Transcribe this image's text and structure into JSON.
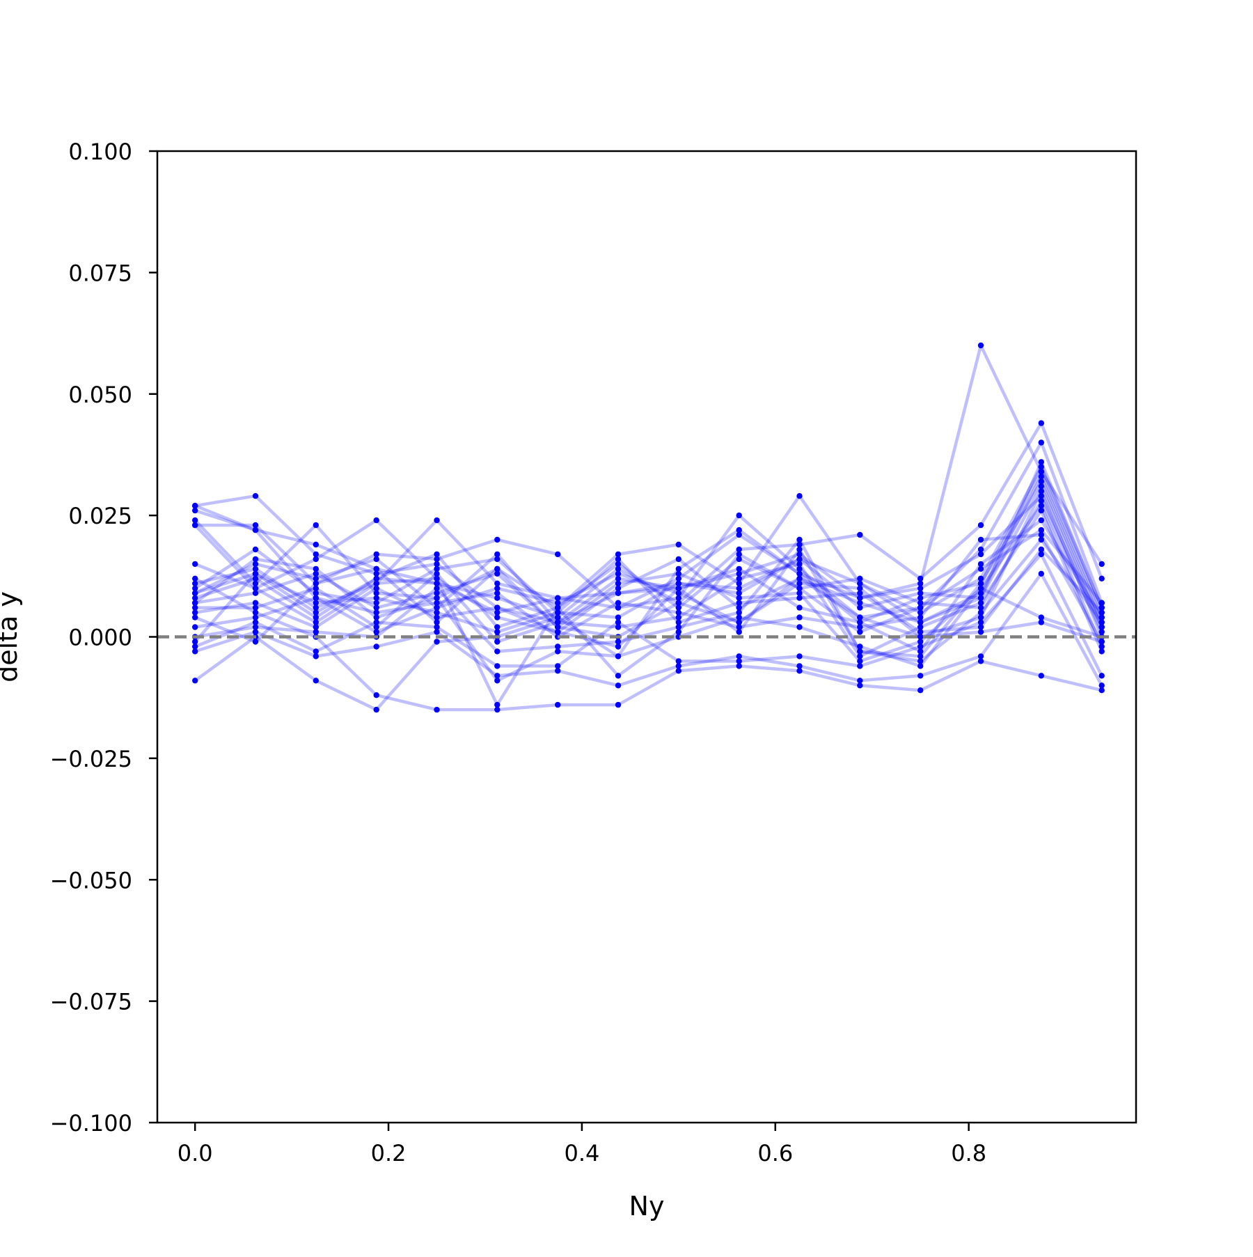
{
  "chart_data": {
    "type": "line",
    "title": "",
    "xlabel": "Ny",
    "ylabel": "delta y",
    "xlim": [
      -0.039,
      0.973
    ],
    "ylim": [
      -0.1,
      0.1
    ],
    "xticks": [
      0.0,
      0.2,
      0.4,
      0.6,
      0.8
    ],
    "xtick_labels": [
      "0.0",
      "0.2",
      "0.4",
      "0.6",
      "0.8"
    ],
    "yticks": [
      0.1,
      0.075,
      0.05,
      0.025,
      0.0,
      -0.025,
      -0.05,
      -0.075,
      -0.1
    ],
    "ytick_labels": [
      "0.100",
      "0.075",
      "0.050",
      "0.025",
      "0.000",
      "−0.025",
      "−0.050",
      "−0.075",
      "−0.100"
    ],
    "grid": false,
    "legend": "none",
    "reference_line": {
      "y": 0.0,
      "style": "dashed",
      "color": "#808080"
    },
    "colors": {
      "series": "#0000ff",
      "reference": "#808080",
      "axes": "#000000"
    },
    "x": [
      0.0,
      0.0625,
      0.125,
      0.1875,
      0.25,
      0.3125,
      0.375,
      0.4375,
      0.5,
      0.5625,
      0.625,
      0.6875,
      0.75,
      0.8125,
      0.875,
      0.9375
    ],
    "series": [
      {
        "values": [
          0.027,
          0.029,
          0.017,
          0.013,
          0.015,
          0.006,
          0.003,
          0.012,
          0.01,
          0.013,
          0.017,
          0.008,
          0.011,
          0.06,
          0.034,
          0.015
        ]
      },
      {
        "values": [
          0.026,
          0.022,
          0.019,
          0.014,
          0.011,
          0.008,
          0.004,
          0.014,
          0.007,
          0.018,
          0.019,
          0.021,
          0.012,
          0.023,
          0.044,
          0.012
        ]
      },
      {
        "values": [
          0.023,
          0.023,
          0.011,
          0.017,
          0.016,
          0.02,
          0.017,
          0.006,
          0.008,
          0.025,
          0.014,
          0.004,
          0.006,
          0.018,
          0.04,
          0.007
        ]
      },
      {
        "values": [
          0.024,
          0.011,
          0.023,
          0.009,
          0.008,
          0.014,
          0.006,
          0.017,
          0.019,
          0.011,
          0.029,
          0.011,
          0.005,
          0.012,
          0.035,
          0.006
        ]
      },
      {
        "values": [
          0.015,
          0.01,
          0.016,
          0.024,
          0.012,
          0.004,
          0.001,
          0.01,
          0.016,
          0.006,
          0.012,
          0.007,
          0.003,
          0.009,
          0.033,
          0.004
        ]
      },
      {
        "values": [
          0.011,
          0.014,
          0.006,
          0.011,
          0.024,
          0.011,
          0.008,
          0.006,
          0.012,
          0.021,
          0.013,
          0.003,
          0.008,
          0.011,
          0.032,
          0.003
        ]
      },
      {
        "values": [
          0.01,
          0.018,
          0.009,
          0.007,
          0.014,
          0.016,
          0.005,
          0.004,
          0.011,
          0.009,
          0.016,
          0.006,
          0.009,
          0.008,
          0.031,
          0.002
        ]
      },
      {
        "values": [
          0.009,
          0.015,
          0.012,
          0.016,
          0.006,
          0.01,
          0.007,
          0.013,
          0.009,
          0.003,
          0.011,
          0.01,
          0.0,
          0.004,
          0.03,
          0.0
        ]
      },
      {
        "values": [
          0.008,
          0.012,
          0.004,
          0.012,
          0.017,
          0.002,
          0.006,
          0.015,
          0.006,
          0.016,
          0.01,
          0.012,
          0.007,
          0.006,
          0.028,
          0.001
        ]
      },
      {
        "values": [
          0.007,
          0.009,
          0.013,
          0.006,
          0.009,
          0.013,
          0.002,
          0.011,
          0.013,
          0.008,
          0.009,
          -0.005,
          -0.001,
          0.01,
          0.027,
          -0.002
        ]
      },
      {
        "values": [
          0.006,
          0.006,
          0.01,
          0.002,
          0.013,
          -0.001,
          0.003,
          0.002,
          0.004,
          0.012,
          0.015,
          -0.004,
          0.002,
          0.007,
          0.026,
          -0.003
        ]
      },
      {
        "values": [
          0.005,
          0.007,
          0.002,
          0.01,
          0.004,
          0.006,
          0.001,
          -0.002,
          0.01,
          0.014,
          0.006,
          0.003,
          -0.003,
          0.015,
          0.024,
          0.004
        ]
      },
      {
        "values": [
          0.002,
          0.004,
          0.008,
          0.005,
          0.007,
          0.009,
          0.0,
          0.007,
          0.005,
          0.002,
          0.004,
          0.002,
          0.004,
          0.02,
          0.021,
          -0.001
        ]
      },
      {
        "values": [
          0.0,
          0.002,
          0.001,
          0.0,
          0.01,
          -0.003,
          -0.002,
          -0.001,
          0.002,
          0.005,
          0.02,
          -0.003,
          -0.005,
          0.005,
          0.02,
          0.003
        ]
      },
      {
        "values": [
          -0.001,
          0.013,
          0.007,
          0.008,
          0.005,
          0.001,
          0.005,
          0.016,
          0.003,
          0.007,
          0.008,
          0.009,
          0.001,
          0.002,
          0.018,
          0.005
        ]
      },
      {
        "values": [
          -0.002,
          0.003,
          -0.003,
          0.003,
          0.002,
          -0.006,
          -0.006,
          0.003,
          -0.005,
          -0.005,
          -0.004,
          -0.006,
          -0.002,
          0.003,
          0.017,
          -0.008
        ]
      },
      {
        "values": [
          -0.003,
          0.001,
          -0.004,
          -0.002,
          0.001,
          -0.008,
          -0.007,
          -0.01,
          -0.006,
          -0.004,
          -0.006,
          -0.009,
          -0.008,
          -0.004,
          0.013,
          -0.01
        ]
      },
      {
        "values": [
          -0.009,
          0.0,
          -0.009,
          -0.015,
          -0.001,
          0.0,
          0.004,
          -0.004,
          0.0,
          0.004,
          0.002,
          -0.002,
          -0.006,
          0.01,
          0.004,
          0.0
        ]
      },
      {
        "values": [
          0.012,
          0.005,
          0.0,
          -0.012,
          -0.015,
          -0.015,
          -0.014,
          -0.014,
          -0.007,
          -0.006,
          -0.007,
          -0.01,
          -0.011,
          -0.005,
          -0.008,
          -0.011
        ]
      },
      {
        "values": [
          0.009,
          0.013,
          0.005,
          0.012,
          0.011,
          0.005,
          0.008,
          0.009,
          0.011,
          0.01,
          0.016,
          0.011,
          0.003,
          0.008,
          0.036,
          0.006
        ]
      },
      {
        "values": [
          0.004,
          -0.001,
          0.011,
          0.014,
          0.003,
          0.014,
          0.002,
          0.0,
          0.007,
          0.003,
          0.012,
          0.004,
          0.0,
          0.001,
          0.003,
          -0.001
        ]
      },
      {
        "values": [
          0.007,
          0.016,
          0.014,
          0.004,
          0.008,
          -0.009,
          -0.003,
          -0.004,
          0.014,
          0.022,
          0.013,
          0.008,
          0.01,
          0.017,
          0.029,
          0.002
        ]
      },
      {
        "values": [
          0.027,
          0.022,
          0.008,
          0.001,
          0.006,
          0.017,
          0.003,
          0.009,
          0.01,
          0.001,
          0.018,
          -0.003,
          -0.004,
          0.011,
          0.034,
          0.005
        ]
      },
      {
        "values": [
          0.023,
          0.01,
          0.003,
          0.011,
          0.012,
          -0.014,
          0.006,
          -0.008,
          0.001,
          0.017,
          0.01,
          0.001,
          0.006,
          0.014,
          0.022,
          0.007
        ]
      }
    ]
  }
}
